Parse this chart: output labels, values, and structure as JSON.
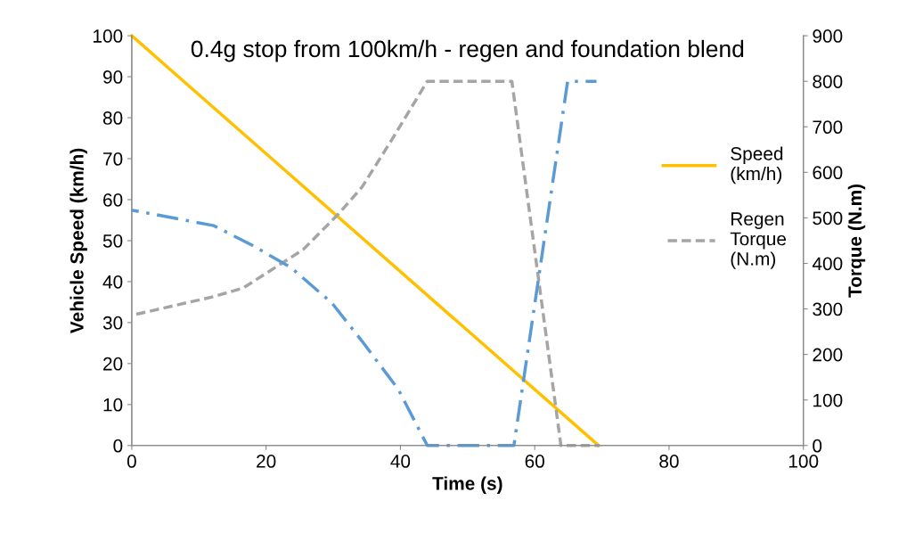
{
  "chart_data": {
    "type": "line",
    "title": "0.4g stop from 100km/h - regen and foundation blend",
    "xlabel": "Time (s)",
    "ylabel": "Vehicle Speed (km/h)",
    "y2label": "Torque (N.m)",
    "xlim": [
      0,
      100
    ],
    "xticks": [
      0,
      20,
      40,
      60,
      80,
      100
    ],
    "ylim": [
      0,
      100
    ],
    "yticks": [
      0,
      10,
      20,
      30,
      40,
      50,
      60,
      70,
      80,
      90,
      100
    ],
    "y2lim": [
      0,
      900
    ],
    "y2ticks": [
      0,
      100,
      200,
      300,
      400,
      500,
      600,
      700,
      800,
      900
    ],
    "grid": false,
    "legend": "right",
    "marker": "none",
    "series": [
      {
        "name": "Speed (km/h)",
        "color": "#ffc000",
        "line_style": "solid",
        "x": [
          0,
          69.5
        ],
        "values": [
          100,
          0
        ]
      },
      {
        "name": "Regen Torque (N.m)",
        "color": "#a5a5a5",
        "line_style": "dashed",
        "axis": "y2",
        "x": [
          0,
          12.2,
          16.6,
          25.5,
          30.8,
          34.3,
          38.7,
          44,
          56.6,
          63.9,
          69.6
        ],
        "values": [
          286,
          327,
          346,
          430,
          509,
          568,
          671,
          800,
          800,
          0,
          0
        ]
      },
      {
        "color": "#5b9bd5",
        "line_style": "dashdot",
        "axis": "y2",
        "x": [
          0,
          12.2,
          17.9,
          23.7,
          29.8,
          34.3,
          39.7,
          44,
          56.9,
          64.9,
          69.2
        ],
        "values": [
          517,
          483,
          440,
          391,
          313,
          229,
          123,
          0,
          0,
          800,
          800
        ]
      }
    ]
  }
}
